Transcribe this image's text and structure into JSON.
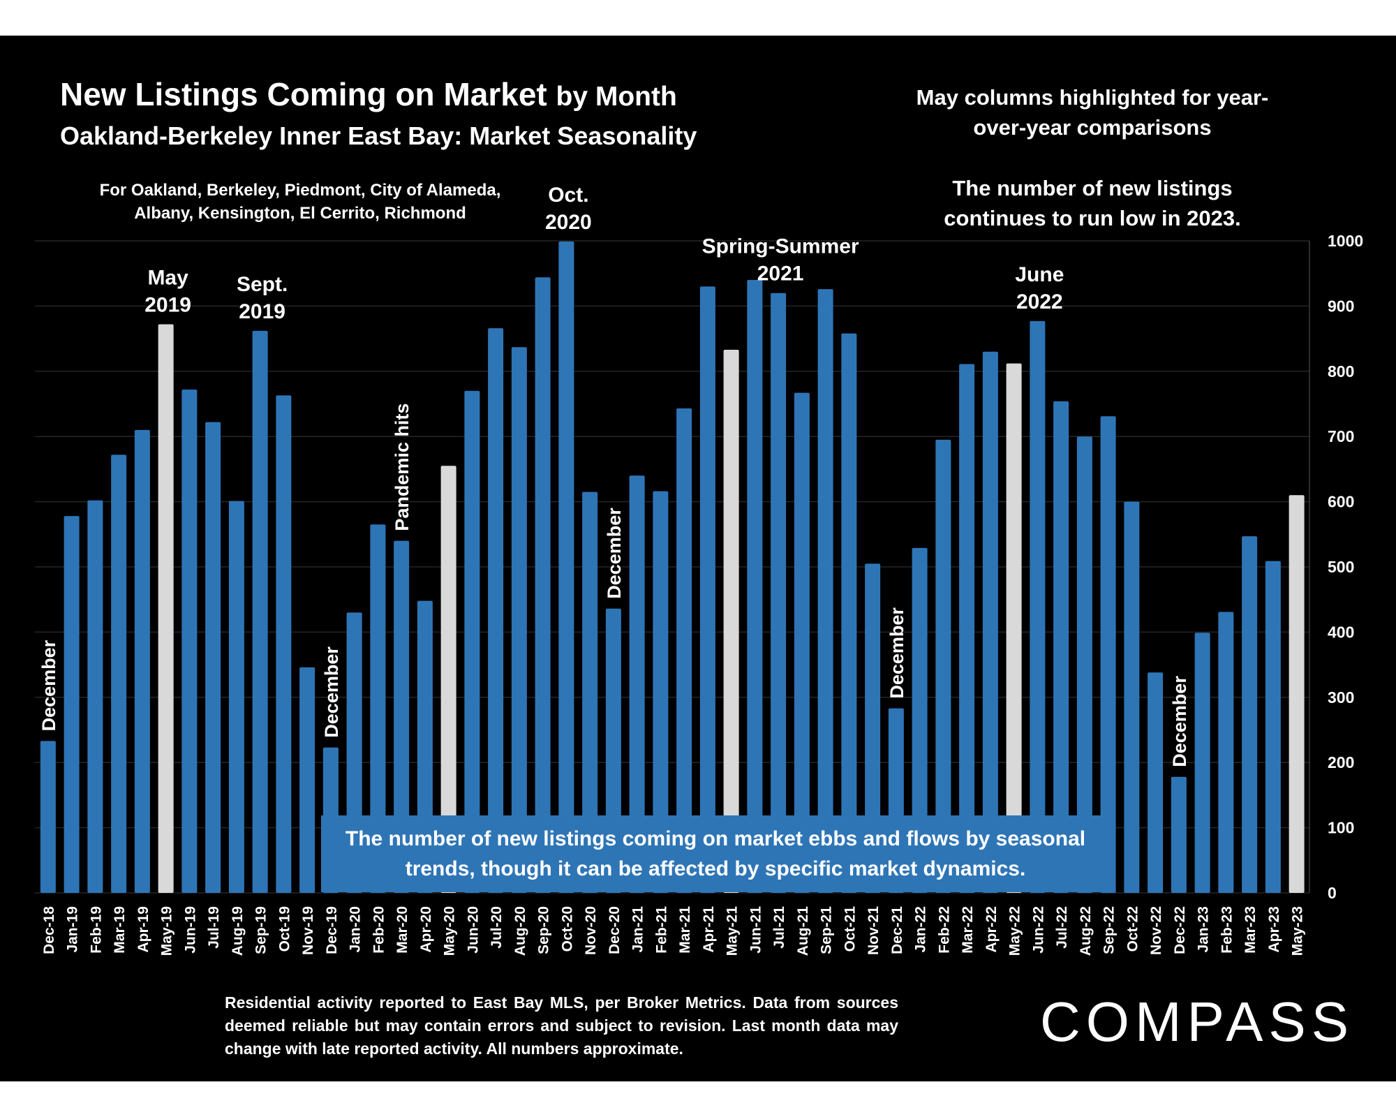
{
  "title": {
    "main": "New Listings Coming on Market",
    "main_suffix": "by Month",
    "sub": "Oakland-Berkeley Inner East Bay: Market Seasonality"
  },
  "scope_note": "For Oakland, Berkeley, Piedmont, City of Alameda, Albany, Kensington, El Cerrito, Richmond",
  "notes": {
    "may_highlight": "May columns highlighted for year-over-year comparisons",
    "low_2023": "The number of new listings continues to run low in 2023."
  },
  "banner": "The number of new listings coming on market ebbs and flows by seasonal trends, though it can be affected by specific market dynamics.",
  "footnote": "Residential activity reported to East Bay MLS, per Broker Metrics. Data from sources deemed reliable but may contain errors and subject to revision. Last month data may change with late reported activity. All numbers approximate.",
  "logo": "COMPASS",
  "colors": {
    "bar": "#2e75b6",
    "highlight": "#d9d9d9",
    "background": "#000000",
    "text": "#ffffff"
  },
  "chart_data": {
    "type": "bar",
    "ylim": [
      0,
      1000
    ],
    "yticks": [
      "0",
      "100",
      "200",
      "300",
      "400",
      "500",
      "600",
      "700",
      "800",
      "900",
      "1000"
    ],
    "grid": true,
    "categories": [
      "Dec-18",
      "Jan-19",
      "Feb-19",
      "Mar-19",
      "Apr-19",
      "May-19",
      "Jun-19",
      "Jul-19",
      "Aug-19",
      "Sep-19",
      "Oct-19",
      "Nov-19",
      "Dec-19",
      "Jan-20",
      "Feb-20",
      "Mar-20",
      "Apr-20",
      "May-20",
      "Jun-20",
      "Jul-20",
      "Aug-20",
      "Sep-20",
      "Oct-20",
      "Nov-20",
      "Dec-20",
      "Jan-21",
      "Feb-21",
      "Mar-21",
      "Apr-21",
      "May-21",
      "Jun-21",
      "Jul-21",
      "Aug-21",
      "Sep-21",
      "Oct-21",
      "Nov-21",
      "Dec-21",
      "Jan-22",
      "Feb-22",
      "Mar-22",
      "Apr-22",
      "May-22",
      "Jun-22",
      "Jul-22",
      "Aug-22",
      "Sep-22",
      "Oct-22",
      "Nov-22",
      "Dec-22",
      "Jan-23",
      "Feb-23",
      "Mar-23",
      "Apr-23",
      "May-23"
    ],
    "values": [
      233,
      578,
      602,
      672,
      710,
      872,
      772,
      722,
      601,
      862,
      763,
      346,
      223,
      430,
      565,
      540,
      448,
      655,
      770,
      866,
      837,
      944,
      999,
      615,
      436,
      640,
      616,
      743,
      930,
      833,
      940,
      920,
      767,
      926,
      858,
      505,
      283,
      529,
      695,
      811,
      830,
      812,
      877,
      754,
      700,
      731,
      600,
      338,
      178,
      399,
      431,
      547,
      509,
      610
    ],
    "highlight": [
      5,
      17,
      29,
      41,
      53
    ],
    "annotations": [
      {
        "text": "December",
        "index": 0,
        "rotated": true
      },
      {
        "text": "May",
        "line2": "2019",
        "index": 5
      },
      {
        "text": "Sept.",
        "line2": "2019",
        "index": 9
      },
      {
        "text": "December",
        "index": 12,
        "rotated": true
      },
      {
        "text": "Pandemic hits",
        "index": 15,
        "rotated": true
      },
      {
        "text": "Oct.",
        "line2": "2020",
        "index": 22
      },
      {
        "text": "December",
        "index": 24,
        "rotated": true
      },
      {
        "text": "Spring-Summer",
        "line2": "2021",
        "index": 31
      },
      {
        "text": "December",
        "index": 36,
        "rotated": true
      },
      {
        "text": "June",
        "line2": "2022",
        "index": 42
      },
      {
        "text": "December",
        "index": 48,
        "rotated": true
      }
    ]
  }
}
